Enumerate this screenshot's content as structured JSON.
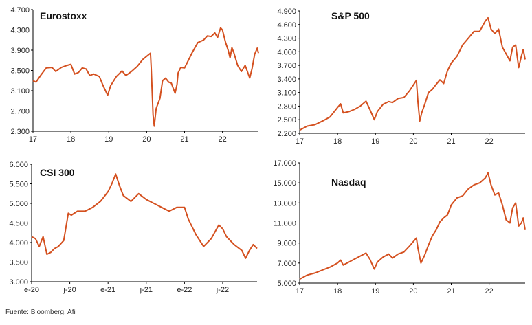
{
  "source": "Fuente: Bloomberg, Afi",
  "colors": {
    "line": "#d4501f",
    "axis": "#000000",
    "grid": "#cccccc"
  },
  "chart_data": [
    {
      "id": "eurostoxx",
      "type": "line",
      "title": "Eurostoxx",
      "xlabel": "",
      "ylabel": "",
      "grid": false,
      "x_ticks": [
        "17",
        "18",
        "19",
        "20",
        "21",
        "22"
      ],
      "x_tick_pos": [
        2017.0,
        2018.0,
        2019.0,
        2020.0,
        2021.0,
        2022.0
      ],
      "y_ticks": [
        "2.300",
        "2.700",
        "3.100",
        "3.500",
        "3.900",
        "4.300",
        "4.700"
      ],
      "ylim": [
        2300,
        4700
      ],
      "xlim": [
        2017.0,
        2022.95
      ],
      "series": [
        {
          "x": [
            2017.0,
            2017.08,
            2017.2,
            2017.35,
            2017.5,
            2017.6,
            2017.75,
            2017.9,
            2018.0,
            2018.1,
            2018.2,
            2018.3,
            2018.4,
            2018.5,
            2018.6,
            2018.75,
            2018.85,
            2018.97,
            2019.05,
            2019.2,
            2019.35,
            2019.45,
            2019.6,
            2019.75,
            2019.9,
            2020.1,
            2020.12,
            2020.17,
            2020.2,
            2020.25,
            2020.35,
            2020.42,
            2020.5,
            2020.58,
            2020.65,
            2020.75,
            2020.8,
            2020.83,
            2020.9,
            2021.0,
            2021.1,
            2021.2,
            2021.35,
            2021.5,
            2021.6,
            2021.7,
            2021.8,
            2021.87,
            2021.95,
            2022.0,
            2022.08,
            2022.15,
            2022.2,
            2022.25,
            2022.3,
            2022.4,
            2022.5,
            2022.6,
            2022.72,
            2022.78,
            2022.85,
            2022.92,
            2022.95
          ],
          "y": [
            3300,
            3270,
            3400,
            3550,
            3560,
            3480,
            3560,
            3600,
            3620,
            3430,
            3460,
            3550,
            3530,
            3400,
            3430,
            3380,
            3200,
            3010,
            3200,
            3380,
            3490,
            3400,
            3480,
            3580,
            3720,
            3840,
            3550,
            2620,
            2400,
            2750,
            2950,
            3300,
            3350,
            3270,
            3250,
            3050,
            3220,
            3450,
            3560,
            3550,
            3700,
            3850,
            4050,
            4100,
            4180,
            4170,
            4240,
            4150,
            4340,
            4300,
            4060,
            3900,
            3750,
            3950,
            3850,
            3600,
            3480,
            3600,
            3350,
            3530,
            3820,
            3940,
            3840
          ]
        }
      ]
    },
    {
      "id": "sp500",
      "type": "line",
      "title": "S&P 500",
      "xlabel": "",
      "ylabel": "",
      "grid": false,
      "x_ticks": [
        "17",
        "18",
        "19",
        "20",
        "21",
        "22"
      ],
      "x_tick_pos": [
        2017.0,
        2018.0,
        2019.0,
        2020.0,
        2021.0,
        2022.0
      ],
      "y_ticks": [
        "2.200",
        "2.500",
        "2.800",
        "3.100",
        "3.400",
        "3.700",
        "4.000",
        "4.300",
        "4.600",
        "4.900"
      ],
      "ylim": [
        2200,
        4900
      ],
      "xlim": [
        2017.0,
        2022.95
      ],
      "series": [
        {
          "x": [
            2017.0,
            2017.2,
            2017.4,
            2017.6,
            2017.8,
            2018.0,
            2018.08,
            2018.15,
            2018.3,
            2018.45,
            2018.6,
            2018.75,
            2018.85,
            2018.97,
            2019.05,
            2019.2,
            2019.35,
            2019.45,
            2019.6,
            2019.75,
            2019.9,
            2020.08,
            2020.12,
            2020.17,
            2020.22,
            2020.3,
            2020.4,
            2020.5,
            2020.6,
            2020.7,
            2020.8,
            2020.9,
            2021.0,
            2021.15,
            2021.3,
            2021.45,
            2021.6,
            2021.75,
            2021.9,
            2021.97,
            2022.05,
            2022.15,
            2022.25,
            2022.35,
            2022.45,
            2022.55,
            2022.62,
            2022.7,
            2022.78,
            2022.85,
            2022.9,
            2022.95
          ],
          "y": [
            2270,
            2360,
            2390,
            2470,
            2560,
            2770,
            2850,
            2650,
            2680,
            2730,
            2800,
            2910,
            2730,
            2500,
            2680,
            2840,
            2900,
            2880,
            2970,
            2990,
            3140,
            3370,
            2900,
            2470,
            2650,
            2840,
            3100,
            3170,
            3280,
            3380,
            3300,
            3580,
            3750,
            3900,
            4150,
            4300,
            4450,
            4450,
            4680,
            4750,
            4500,
            4400,
            4500,
            4100,
            3950,
            3800,
            4100,
            4150,
            3650,
            3900,
            4050,
            3830
          ]
        }
      ]
    },
    {
      "id": "csi300",
      "type": "line",
      "title": "CSI 300",
      "xlabel": "",
      "ylabel": "",
      "grid": false,
      "x_ticks": [
        "e-20",
        "j-20",
        "e-21",
        "j-21",
        "e-22",
        "j-22"
      ],
      "x_tick_pos": [
        2020.0,
        2020.5,
        2021.0,
        2021.5,
        2022.0,
        2022.5
      ],
      "y_ticks": [
        "3.000",
        "3.500",
        "4.000",
        "4.500",
        "5.000",
        "5.500",
        "6.000"
      ],
      "ylim": [
        3000,
        6000
      ],
      "xlim": [
        2020.0,
        2022.95
      ],
      "series": [
        {
          "x": [
            2020.0,
            2020.05,
            2020.1,
            2020.15,
            2020.2,
            2020.25,
            2020.3,
            2020.35,
            2020.42,
            2020.48,
            2020.52,
            2020.6,
            2020.7,
            2020.8,
            2020.9,
            2021.0,
            2021.05,
            2021.1,
            2021.15,
            2021.2,
            2021.3,
            2021.4,
            2021.5,
            2021.6,
            2021.7,
            2021.8,
            2021.9,
            2022.0,
            2022.05,
            2022.1,
            2022.15,
            2022.25,
            2022.35,
            2022.45,
            2022.5,
            2022.55,
            2022.65,
            2022.75,
            2022.8,
            2022.85,
            2022.9,
            2022.95
          ],
          "y": [
            4150,
            4100,
            3900,
            4150,
            3700,
            3750,
            3850,
            3900,
            4050,
            4750,
            4700,
            4800,
            4800,
            4900,
            5050,
            5300,
            5500,
            5750,
            5450,
            5200,
            5050,
            5250,
            5100,
            5000,
            4900,
            4800,
            4900,
            4900,
            4600,
            4400,
            4200,
            3900,
            4100,
            4450,
            4350,
            4150,
            3950,
            3800,
            3600,
            3800,
            3950,
            3850
          ]
        }
      ]
    },
    {
      "id": "nasdaq",
      "type": "line",
      "title": "Nasdaq",
      "xlabel": "",
      "ylabel": "",
      "grid": false,
      "x_ticks": [
        "17",
        "18",
        "19",
        "20",
        "21",
        "22"
      ],
      "x_tick_pos": [
        2017.0,
        2018.0,
        2019.0,
        2020.0,
        2021.0,
        2022.0
      ],
      "y_ticks": [
        "5.000",
        "7.000",
        "9.000",
        "11.000",
        "13.000",
        "15.000",
        "17.000"
      ],
      "ylim": [
        5000,
        17000
      ],
      "xlim": [
        2017.0,
        2022.95
      ],
      "series": [
        {
          "x": [
            2017.0,
            2017.2,
            2017.4,
            2017.6,
            2017.8,
            2018.0,
            2018.08,
            2018.15,
            2018.3,
            2018.45,
            2018.6,
            2018.75,
            2018.85,
            2018.97,
            2019.05,
            2019.2,
            2019.35,
            2019.45,
            2019.6,
            2019.75,
            2019.9,
            2020.08,
            2020.12,
            2020.2,
            2020.3,
            2020.4,
            2020.5,
            2020.6,
            2020.7,
            2020.8,
            2020.9,
            2021.0,
            2021.15,
            2021.3,
            2021.45,
            2021.6,
            2021.75,
            2021.9,
            2021.97,
            2022.05,
            2022.15,
            2022.25,
            2022.35,
            2022.45,
            2022.55,
            2022.62,
            2022.7,
            2022.78,
            2022.85,
            2022.9,
            2022.95
          ],
          "y": [
            5400,
            5800,
            6000,
            6300,
            6600,
            7000,
            7300,
            6800,
            7100,
            7400,
            7700,
            8000,
            7400,
            6400,
            7100,
            7600,
            7900,
            7500,
            7900,
            8100,
            8700,
            9500,
            8500,
            7000,
            7800,
            8800,
            9700,
            10300,
            11100,
            11500,
            11800,
            12800,
            13500,
            13700,
            14400,
            14800,
            15000,
            15500,
            16000,
            14800,
            13800,
            14000,
            12800,
            11300,
            11000,
            12500,
            13000,
            10700,
            11000,
            11500,
            10300
          ]
        }
      ]
    }
  ]
}
